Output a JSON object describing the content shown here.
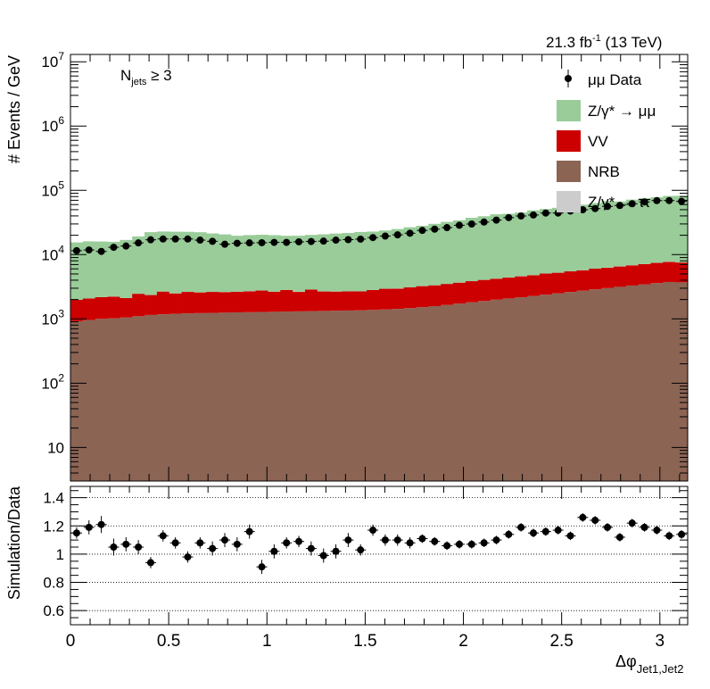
{
  "header": {
    "lumi_label": "21.3 fb",
    "lumi_sup": "-1",
    "energy_label": " (13 TeV)"
  },
  "annotation": {
    "main": "N",
    "sub": "jets",
    "tail": " ≥ 3"
  },
  "legend": [
    {
      "key": "data",
      "text": "μμ Data",
      "color": "#000000"
    },
    {
      "key": "zmm",
      "text": "Z/γ* → μμ",
      "color": "#99cc99"
    },
    {
      "key": "vv",
      "text": "VV",
      "color": "#cc0000"
    },
    {
      "key": "nrb",
      "text": "NRB",
      "color": "#8b6454"
    },
    {
      "key": "ztt",
      "text": "Z/γ* → ττ",
      "color": "#cccccc"
    }
  ],
  "chart_data": [
    {
      "type": "histogram-stacked-log",
      "xlabel": "Δφ",
      "xlabel_sub": "Jet1,Jet2",
      "ylabel": "# Events / GeV",
      "xlim": [
        0,
        3.1416
      ],
      "ylim": [
        3,
        13000000
      ],
      "y_scale": "log",
      "y_tick_labels": [
        "10",
        "10^2",
        "10^3",
        "10^4",
        "10^5",
        "10^6",
        "10^7"
      ],
      "x_tick_labels": [
        "0",
        "0.5",
        "1",
        "1.5",
        "2",
        "2.5",
        "3"
      ],
      "bins": 50,
      "series": [
        {
          "name": "NRB",
          "values": [
            920,
            960,
            1000,
            1020,
            1050,
            1100,
            1150,
            1180,
            1200,
            1220,
            1230,
            1240,
            1250,
            1260,
            1270,
            1280,
            1290,
            1300,
            1310,
            1320,
            1330,
            1340,
            1350,
            1360,
            1380,
            1400,
            1430,
            1470,
            1520,
            1580,
            1650,
            1730,
            1810,
            1900,
            1990,
            2080,
            2170,
            2270,
            2380,
            2500,
            2620,
            2750,
            2880,
            3010,
            3150,
            3300,
            3450,
            3600,
            3750,
            3700
          ]
        },
        {
          "name": "VV",
          "values": [
            1060,
            1120,
            1180,
            1200,
            1060,
            1360,
            1200,
            1480,
            1290,
            1410,
            1350,
            1390,
            1360,
            1380,
            1420,
            1480,
            1360,
            1520,
            1320,
            1540,
            1340,
            1320,
            1340,
            1320,
            1440,
            1540,
            1520,
            1620,
            1710,
            1750,
            1850,
            1930,
            2050,
            2140,
            2230,
            2310,
            2430,
            2510,
            2690,
            2720,
            2870,
            2960,
            3180,
            3230,
            3390,
            3510,
            3670,
            3840,
            3960,
            3840
          ]
        },
        {
          "name": "Z/γ* → ττ",
          "values": [
            0,
            0,
            0,
            0,
            0,
            0,
            0,
            0,
            0,
            0,
            0,
            0,
            0,
            0,
            28,
            0,
            0,
            0,
            25,
            0,
            0,
            0,
            0,
            0,
            0,
            0,
            33,
            0,
            0,
            0,
            0,
            0,
            0,
            0,
            0,
            18,
            60,
            0,
            0,
            0,
            0,
            45,
            0,
            50,
            67,
            35,
            0,
            32,
            100,
            0
          ]
        },
        {
          "name": "Z/γ* → μμ",
          "values": [
            13500,
            14000,
            13800,
            13600,
            14800,
            16700,
            20000,
            20200,
            20200,
            20000,
            19700,
            18700,
            18000,
            17000,
            17400,
            17600,
            17400,
            16800,
            17000,
            17400,
            18000,
            18600,
            19000,
            19800,
            20000,
            20800,
            22000,
            23500,
            24800,
            26800,
            28800,
            30500,
            33500,
            35500,
            38200,
            38800,
            40500,
            44000,
            46200,
            48200,
            51800,
            54000,
            57200,
            61800,
            60500,
            64800,
            68400,
            70600,
            74000,
            74500
          ]
        },
        {
          "name": "μμ Data",
          "values": [
            11500,
            11800,
            11200,
            13000,
            13600,
            15200,
            17000,
            17500,
            17500,
            17500,
            16800,
            16100,
            14500,
            15000,
            15200,
            15300,
            15500,
            15500,
            15800,
            16000,
            16200,
            16800,
            17100,
            17400,
            18400,
            19400,
            20300,
            21500,
            23800,
            24900,
            26300,
            28600,
            29900,
            32100,
            34400,
            37600,
            39900,
            41300,
            44300,
            44300,
            47600,
            49900,
            52000,
            56200,
            58100,
            61900,
            66000,
            69200,
            69300,
            67300
          ]
        }
      ]
    },
    {
      "type": "scatter-errorbar",
      "ylabel": "Simulation/Data",
      "xlim": [
        0,
        3.1416
      ],
      "ylim": [
        0.5,
        1.48
      ],
      "y_tick_labels": [
        "0.6",
        "0.8",
        "1",
        "1.2",
        "1.4"
      ],
      "grid_y": [
        0.6,
        0.8,
        1.0,
        1.2,
        1.4
      ],
      "series": [
        {
          "name": "Ratio",
          "x": [
            0.0314,
            0.0942,
            0.1571,
            0.2199,
            0.2827,
            0.3456,
            0.4084,
            0.4712,
            0.5341,
            0.5969,
            0.6597,
            0.7226,
            0.7854,
            0.8482,
            0.9111,
            0.9739,
            1.0367,
            1.0996,
            1.1624,
            1.2252,
            1.2881,
            1.3509,
            1.4137,
            1.4765,
            1.5394,
            1.6022,
            1.665,
            1.7279,
            1.7907,
            1.8535,
            1.9164,
            1.9792,
            2.042,
            2.1049,
            2.1677,
            2.2305,
            2.2934,
            2.3562,
            2.419,
            2.4819,
            2.5447,
            2.6075,
            2.6704,
            2.7332,
            2.796,
            2.8588,
            2.9217,
            2.9845,
            3.0473,
            3.1102
          ],
          "y": [
            1.15,
            1.19,
            1.21,
            1.05,
            1.07,
            1.05,
            0.94,
            1.13,
            1.08,
            0.98,
            1.08,
            1.04,
            1.1,
            1.07,
            1.16,
            0.91,
            1.02,
            1.08,
            1.09,
            1.04,
            0.99,
            1.02,
            1.1,
            1.03,
            1.17,
            1.1,
            1.1,
            1.08,
            1.11,
            1.09,
            1.06,
            1.07,
            1.07,
            1.08,
            1.1,
            1.14,
            1.19,
            1.15,
            1.16,
            1.17,
            1.13,
            1.26,
            1.24,
            1.19,
            1.12,
            1.22,
            1.19,
            1.17,
            1.13,
            1.14
          ],
          "yerr": [
            0.04,
            0.05,
            0.06,
            0.06,
            0.05,
            0.05,
            0.04,
            0.04,
            0.04,
            0.04,
            0.04,
            0.05,
            0.05,
            0.05,
            0.05,
            0.05,
            0.05,
            0.04,
            0.04,
            0.05,
            0.05,
            0.05,
            0.05,
            0.04,
            0.04,
            0.04,
            0.04,
            0.04,
            0.03,
            0.03,
            0.03,
            0.03,
            0.03,
            0.03,
            0.03,
            0.03,
            0.03,
            0.03,
            0.03,
            0.03,
            0.03,
            0.03,
            0.03,
            0.03,
            0.03,
            0.03,
            0.03,
            0.03,
            0.03,
            0.03
          ]
        }
      ]
    }
  ]
}
